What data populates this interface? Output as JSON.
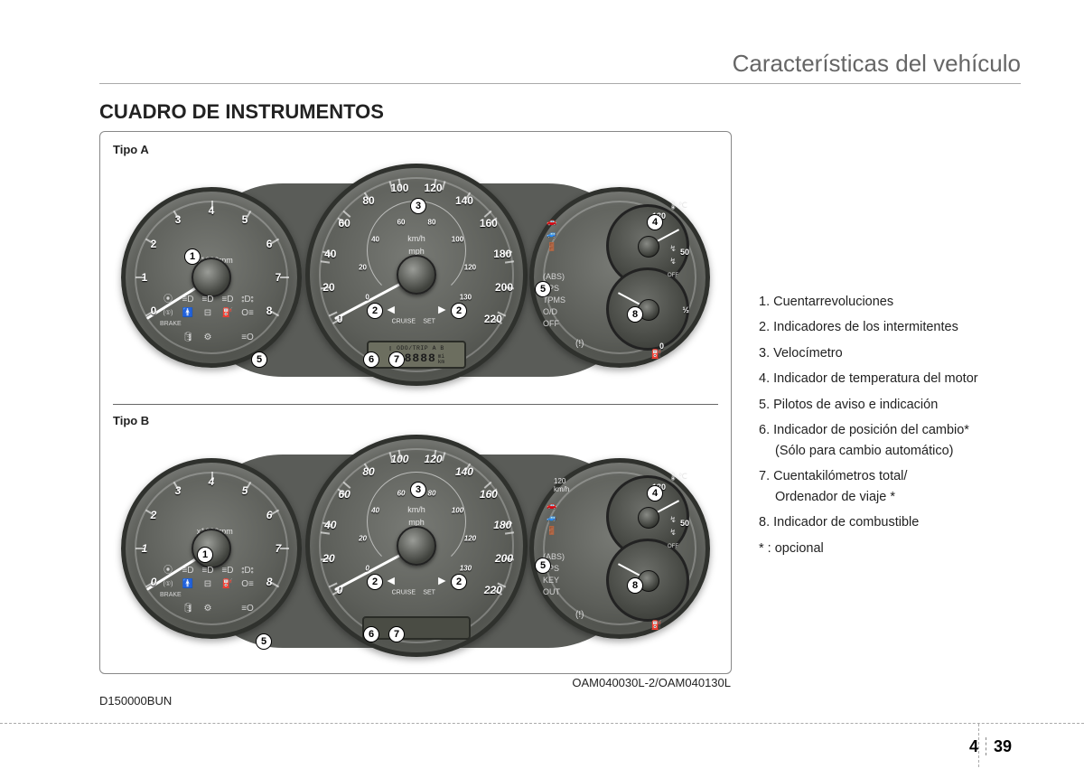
{
  "header": {
    "title": "Características del vehículo"
  },
  "section": {
    "title": "CUADRO DE INSTRUMENTOS"
  },
  "types": {
    "a": "Tipo A",
    "b": "Tipo B"
  },
  "image_code": "OAM040030L-2/OAM040130L",
  "doc_code": "D150000BUN",
  "page": {
    "chapter": "4",
    "num": "39"
  },
  "legend": {
    "1": "1. Cuentarrevoluciones",
    "2": "2. Indicadores de los intermitentes",
    "3": "3. Velocímetro",
    "4": "4. Indicador de temperatura del motor",
    "5": "5. Pilotos de aviso e indicación",
    "6": "6. Indicador de posición del cambio*",
    "6b": "(Sólo para cambio automático)",
    "7": "7. Cuentakilómetros total/",
    "7b": "Ordenador de viaje *",
    "8": "8. Indicador de combustible",
    "star": "* : opcional"
  },
  "tach": {
    "unit": "x1000rpm",
    "nums": [
      "0",
      "1",
      "2",
      "3",
      "4",
      "5",
      "6",
      "7",
      "8"
    ]
  },
  "speedo": {
    "kmh": "km/h",
    "mph": "mph",
    "cruise": "CRUISE",
    "set": "SET",
    "nums_a": [
      "0",
      "20",
      "40",
      "60",
      "80",
      "100",
      "120",
      "140",
      "160",
      "180",
      "200",
      "220"
    ],
    "mph_a": [
      "0",
      "20",
      "40",
      "60",
      "80",
      "100",
      "120",
      "130"
    ],
    "lcd_top": "ODO/TRIP A B",
    "lcd_digits": "888888",
    "lcd_units": "mi\nkm"
  },
  "temp": {
    "unit": "℃",
    "max": "130",
    "mid": "50"
  },
  "fuel": {
    "e": "0",
    "half": "1/2",
    "f": "1",
    "km120": "120\nkm/h"
  },
  "right_labels": [
    "(ABS)",
    "EPS",
    "TPMS",
    "O/D\nOFF"
  ],
  "right_labels_b": [
    "(ABS)",
    "EPS",
    "KEY\nOUT"
  ],
  "colors": {
    "gauge_face": "#5c5e59",
    "needle": "#ffffff",
    "callout_border": "#000000",
    "text": "#222222"
  },
  "callouts": {
    "c1": "1",
    "c2": "2",
    "c3": "3",
    "c4": "4",
    "c5": "5",
    "c6": "6",
    "c7": "7",
    "c8": "8"
  }
}
